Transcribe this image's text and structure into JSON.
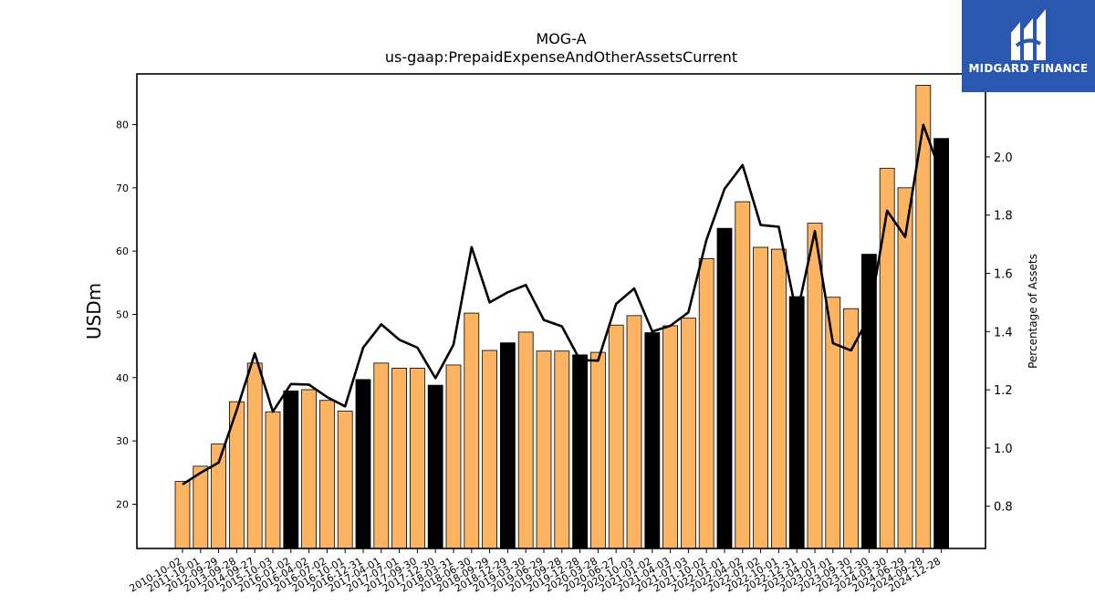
{
  "title": "MOG-A",
  "subtitle": "us-gaap:PrepaidExpenseAndOtherAssetsCurrent",
  "logo": {
    "text": "MIDGARD FINANCE",
    "bg_color": "#2a57b0"
  },
  "chart_data": {
    "type": "bar",
    "ylabel": "USDm",
    "y2label": "Percentage of Assets",
    "ylim": [
      13,
      88
    ],
    "y2lim": [
      0.655,
      2.285
    ],
    "yticks": [
      20,
      30,
      40,
      50,
      60,
      70,
      80
    ],
    "y2ticks": [
      0.8,
      1.0,
      1.2,
      1.4,
      1.6,
      1.8,
      2.0
    ],
    "colors": {
      "bar": "#fdb462",
      "bar_highlight": "#000000",
      "line": "#000000"
    },
    "categories": [
      "2010-10-02",
      "2011-10-01",
      "2012-09-29",
      "2013-09-28",
      "2014-09-27",
      "2015-10-03",
      "2016-01-02",
      "2016-04-02",
      "2016-07-02",
      "2016-10-01",
      "2016-12-31",
      "2017-04-01",
      "2017-07-01",
      "2017-09-30",
      "2017-12-30",
      "2018-03-31",
      "2018-06-30",
      "2018-09-29",
      "2018-12-29",
      "2019-03-30",
      "2019-06-29",
      "2019-09-28",
      "2019-12-28",
      "2020-03-28",
      "2020-06-27",
      "2020-10-03",
      "2021-01-02",
      "2021-04-03",
      "2021-07-03",
      "2021-10-02",
      "2022-01-01",
      "2022-04-02",
      "2022-07-02",
      "2022-10-01",
      "2022-12-31",
      "2023-04-01",
      "2023-07-01",
      "2023-09-30",
      "2023-12-30",
      "2024-03-30",
      "2024-06-29",
      "2024-09-28",
      "2024-12-28"
    ],
    "series": [
      {
        "type": "bar",
        "axis": "left",
        "values": [
          23.6,
          26.0,
          29.5,
          36.2,
          42.3,
          34.6,
          37.9,
          38.1,
          36.4,
          34.7,
          39.7,
          42.3,
          41.5,
          41.5,
          38.8,
          42.0,
          50.2,
          44.3,
          45.5,
          47.2,
          44.2,
          44.2,
          43.6,
          44.0,
          48.3,
          49.8,
          47.1,
          48.2,
          49.4,
          58.8,
          63.6,
          67.8,
          60.6,
          60.3,
          52.8,
          64.4,
          52.7,
          50.9,
          59.5,
          73.1,
          70.0,
          86.2,
          77.8
        ],
        "highlight": [
          false,
          false,
          false,
          false,
          false,
          false,
          true,
          false,
          false,
          false,
          true,
          false,
          false,
          false,
          true,
          false,
          false,
          false,
          true,
          false,
          false,
          false,
          true,
          false,
          false,
          false,
          true,
          false,
          false,
          false,
          true,
          false,
          false,
          false,
          true,
          false,
          false,
          false,
          true,
          false,
          false,
          false,
          true
        ]
      },
      {
        "type": "line",
        "axis": "right",
        "values": [
          0.875,
          0.915,
          0.95,
          1.13,
          1.325,
          1.125,
          1.22,
          1.218,
          1.175,
          1.143,
          1.345,
          1.425,
          1.372,
          1.345,
          1.24,
          1.355,
          1.69,
          1.5,
          1.535,
          1.56,
          1.44,
          1.418,
          1.302,
          1.3,
          1.495,
          1.548,
          1.4,
          1.42,
          1.466,
          1.715,
          1.89,
          1.972,
          1.766,
          1.76,
          1.456,
          1.745,
          1.36,
          1.335,
          1.45,
          1.815,
          1.725,
          2.11,
          1.94
        ]
      }
    ]
  }
}
